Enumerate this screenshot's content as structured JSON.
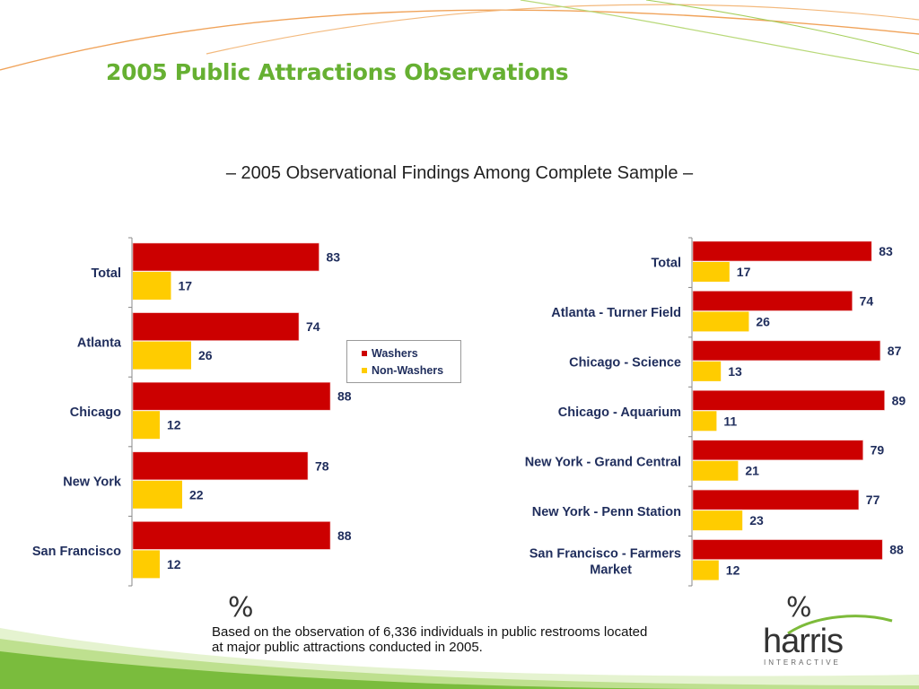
{
  "slide": {
    "title": "2005 Public Attractions Observations",
    "subtitle": "– 2005 Observational Findings Among Complete Sample –",
    "percent_symbol_left": "%",
    "percent_symbol_right": "%",
    "footnote_line1": "Based on the observation of 6,336 individuals in public restrooms located",
    "footnote_line2": "at major public attractions conducted in 2005.",
    "logo_name": "harris",
    "logo_tagline": "INTERACTIVE"
  },
  "legend": {
    "washers": "Washers",
    "non_washers": "Non-Washers"
  },
  "colors": {
    "washers": "#cc0000",
    "non_washers": "#ffcc00",
    "title": "#66b032",
    "label": "#1f2d5c"
  },
  "chart_data": [
    {
      "type": "bar",
      "orientation": "horizontal",
      "categories": [
        "Total",
        "Atlanta",
        "Chicago",
        "New York",
        "San Francisco"
      ],
      "series": [
        {
          "name": "Washers",
          "values": [
            83,
            74,
            88,
            78,
            88
          ]
        },
        {
          "name": "Non-Washers",
          "values": [
            17,
            26,
            12,
            22,
            12
          ]
        }
      ],
      "xlim": [
        0,
        100
      ],
      "legend": "center-right"
    },
    {
      "type": "bar",
      "orientation": "horizontal",
      "categories": [
        "Total",
        "Atlanta - Turner Field",
        "Chicago - Science",
        "Chicago - Aquarium",
        "New York - Grand Central",
        "New York - Penn Station",
        "San Francisco - Farmers Market"
      ],
      "series": [
        {
          "name": "Washers",
          "values": [
            83,
            74,
            87,
            89,
            79,
            77,
            88
          ]
        },
        {
          "name": "Non-Washers",
          "values": [
            17,
            26,
            13,
            11,
            21,
            23,
            12
          ]
        }
      ],
      "xlim": [
        0,
        100
      ]
    }
  ]
}
